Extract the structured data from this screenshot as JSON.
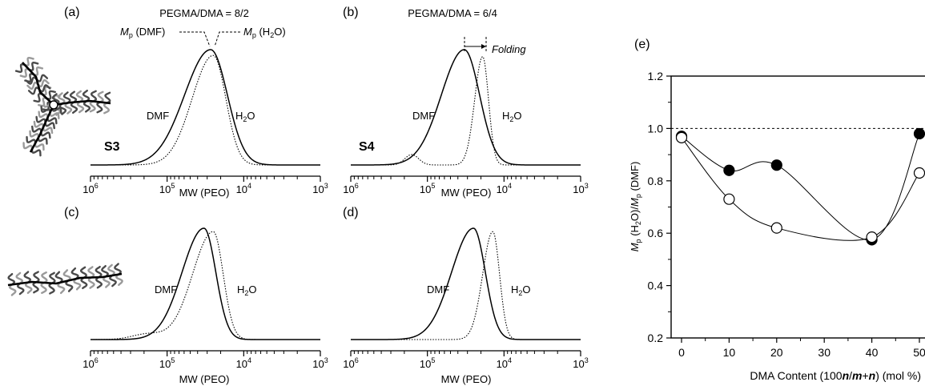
{
  "figure": {
    "panel_labels": [
      "(a)",
      "(b)",
      "(c)",
      "(d)",
      "(e)"
    ],
    "sample_labels": [
      "S3",
      "S4"
    ]
  },
  "chart_data": [
    {
      "id": "a",
      "type": "line",
      "panel_label": "(a)",
      "title": "PEGMA/DMA = 8/2",
      "sample": "S3",
      "xlabel": "MW (PEO)",
      "x_scale": "log",
      "x_reversed": true,
      "xlim": [
        1000000,
        1000
      ],
      "x_ticks": [
        1000000,
        100000,
        10000,
        1000
      ],
      "x_tick_base": "10",
      "x_tick_exponents": [
        "6",
        "5",
        "4",
        "3"
      ],
      "series": [
        {
          "name": "DMF",
          "style": "solid",
          "peak_mw": 27000,
          "sigma_decades": 0.28,
          "skew": 0.22,
          "height": 1.0,
          "baseline_offset": 0
        },
        {
          "name": "H2O",
          "style": "dotted",
          "peak_mw": 25000,
          "sigma_decades": 0.22,
          "skew": 0.25,
          "height": 0.95,
          "baseline_offset": 0
        }
      ],
      "annotations": {
        "mp_dmf": "M",
        "mp_dmf_sub": "p",
        "mp_dmf_tail": " (DMF)",
        "mp_h2o": "M",
        "mp_h2o_sub": "p",
        "mp_h2o_tail": " (H",
        "mp_h2o_sub2": "2",
        "mp_h2o_tail2": "O)"
      }
    },
    {
      "id": "b",
      "type": "line",
      "panel_label": "(b)",
      "title": "PEGMA/DMA = 6/4",
      "sample": "S4",
      "xlabel": "MW (PEO)",
      "x_scale": "log",
      "x_reversed": true,
      "xlim": [
        1000000,
        1000
      ],
      "x_ticks": [
        1000000,
        100000,
        10000,
        1000
      ],
      "x_tick_base": "10",
      "x_tick_exponents": [
        "6",
        "5",
        "4",
        "3"
      ],
      "series": [
        {
          "name": "DMF",
          "style": "solid",
          "peak_mw": 33000,
          "sigma_decades": 0.25,
          "skew": 0.2,
          "height": 1.0,
          "baseline_offset": 0
        },
        {
          "name": "H2O",
          "style": "dotted",
          "peak_mw": 19000,
          "sigma_decades": 0.09,
          "skew": 0.15,
          "height": 0.94,
          "baseline_offset": 0,
          "shoulder": {
            "mw": 160000,
            "height": 0.09,
            "sigma_decades": 0.09
          }
        }
      ],
      "annotations": {
        "folding": "Folding"
      }
    },
    {
      "id": "c",
      "type": "line",
      "panel_label": "(c)",
      "xlabel": "MW (PEO)",
      "x_scale": "log",
      "x_reversed": true,
      "xlim": [
        1000000,
        1000
      ],
      "x_ticks": [
        1000000,
        100000,
        10000,
        1000
      ],
      "x_tick_base": "10",
      "x_tick_exponents": [
        "6",
        "5",
        "4",
        "3"
      ],
      "series": [
        {
          "name": "DMF",
          "style": "solid",
          "peak_mw": 33000,
          "sigma_decades": 0.22,
          "skew": 0.3,
          "height": 1.0,
          "baseline_offset": 0
        },
        {
          "name": "H2O",
          "style": "dotted",
          "peak_mw": 25000,
          "sigma_decades": 0.2,
          "skew": 0.35,
          "height": 0.97,
          "baseline_offset": 0,
          "shoulder": {
            "mw": 180000,
            "height": 0.05,
            "sigma_decades": 0.2
          }
        }
      ]
    },
    {
      "id": "d",
      "type": "line",
      "panel_label": "(d)",
      "xlabel": "MW (PEO)",
      "x_scale": "log",
      "x_reversed": true,
      "xlim": [
        1000000,
        1000
      ],
      "x_ticks": [
        1000000,
        100000,
        10000,
        1000
      ],
      "x_tick_base": "10",
      "x_tick_exponents": [
        "6",
        "5",
        "4",
        "3"
      ],
      "series": [
        {
          "name": "DMF",
          "style": "solid",
          "peak_mw": 25000,
          "sigma_decades": 0.22,
          "skew": 0.3,
          "height": 1.0,
          "baseline_offset": 0
        },
        {
          "name": "H2O",
          "style": "dotted",
          "peak_mw": 14000,
          "sigma_decades": 0.11,
          "skew": 0.2,
          "height": 0.97,
          "baseline_offset": 0
        }
      ]
    },
    {
      "id": "e",
      "type": "scatter",
      "panel_label": "(e)",
      "xlabel_parts": [
        "DMA Content (100",
        "n",
        "/",
        "m",
        "+",
        "n",
        ") (mol %)"
      ],
      "ylabel_parts": [
        "M",
        "p",
        " (H",
        "2",
        "O)/",
        "M",
        "p",
        " (DMF)"
      ],
      "xlim": [
        -2,
        52
      ],
      "ylim": [
        0.2,
        1.2
      ],
      "x_ticks": [
        0,
        10,
        20,
        30,
        40,
        50
      ],
      "x_tick_labels": [
        "0",
        "10",
        "20",
        "30",
        "40",
        "50"
      ],
      "y_ticks": [
        0.2,
        0.4,
        0.6,
        0.8,
        1.0,
        1.2
      ],
      "y_tick_labels": [
        "0.2",
        "0.4",
        "0.6",
        "0.8",
        "1.0",
        "1.2"
      ],
      "reference_line_y": 1.0,
      "series": [
        {
          "name": "filled",
          "marker": "filled-circle",
          "x": [
            0,
            10,
            20,
            40,
            50
          ],
          "y": [
            0.97,
            0.84,
            0.86,
            0.575,
            0.98
          ]
        },
        {
          "name": "open",
          "marker": "open-circle",
          "x": [
            0,
            10,
            20,
            40,
            50
          ],
          "y": [
            0.965,
            0.73,
            0.62,
            0.585,
            0.83
          ]
        }
      ]
    }
  ]
}
